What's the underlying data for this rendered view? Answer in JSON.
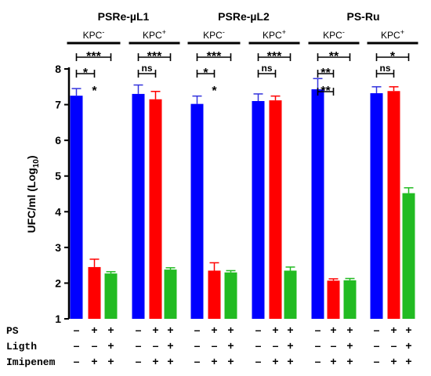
{
  "chart_data": {
    "type": "bar",
    "ylabel": "UFC/ml (Log10)",
    "ylabel_main": "UFC/ml (Log",
    "ylabel_sub": "10",
    "ylabel_end": ")",
    "ylim": [
      1,
      8
    ],
    "yticks": [
      "1",
      "2",
      "3",
      "4",
      "5",
      "6",
      "7",
      "8"
    ],
    "colors": {
      "blue": "#0000ff",
      "red": "#ff0000",
      "green": "#22bb22",
      "errorbar_blue": "#3333dd"
    },
    "groups": [
      {
        "title": "PSRe-µL1",
        "subgroups": [
          {
            "label": "KPC",
            "sup": "-",
            "bars": [
              {
                "color": "blue",
                "value": 7.25,
                "err": 0.2
              },
              {
                "color": "red",
                "value": 2.45,
                "err": 0.22
              },
              {
                "color": "green",
                "value": 2.27,
                "err": 0.05
              }
            ],
            "sig": [
              {
                "text": "*",
                "from": 0,
                "to": 1,
                "level": 1
              },
              {
                "text": "***",
                "from": 0,
                "to": 2,
                "level": 0
              },
              {
                "text": "*",
                "from": 1,
                "to": 1,
                "level": 2,
                "free": true
              }
            ]
          },
          {
            "label": "KPC",
            "sup": "+",
            "bars": [
              {
                "color": "blue",
                "value": 7.3,
                "err": 0.25
              },
              {
                "color": "red",
                "value": 7.15,
                "err": 0.22
              },
              {
                "color": "green",
                "value": 2.38,
                "err": 0.05
              }
            ],
            "sig": [
              {
                "text": "ns",
                "from": 0,
                "to": 1,
                "level": 1
              },
              {
                "text": "***",
                "from": 0,
                "to": 2,
                "level": 0
              }
            ]
          }
        ]
      },
      {
        "title": "PSRe-µL2",
        "subgroups": [
          {
            "label": "KPC",
            "sup": "-",
            "bars": [
              {
                "color": "blue",
                "value": 7.02,
                "err": 0.22
              },
              {
                "color": "red",
                "value": 2.35,
                "err": 0.22
              },
              {
                "color": "green",
                "value": 2.3,
                "err": 0.05
              }
            ],
            "sig": [
              {
                "text": "*",
                "from": 0,
                "to": 1,
                "level": 1
              },
              {
                "text": "***",
                "from": 0,
                "to": 2,
                "level": 0
              },
              {
                "text": "*",
                "from": 1,
                "to": 1,
                "level": 2,
                "free": true
              }
            ]
          },
          {
            "label": "KPC",
            "sup": "+",
            "bars": [
              {
                "color": "blue",
                "value": 7.1,
                "err": 0.2
              },
              {
                "color": "red",
                "value": 7.12,
                "err": 0.12
              },
              {
                "color": "green",
                "value": 2.35,
                "err": 0.1
              }
            ],
            "sig": [
              {
                "text": "ns",
                "from": 0,
                "to": 1,
                "level": 1
              },
              {
                "text": "***",
                "from": 0,
                "to": 2,
                "level": 0
              }
            ]
          }
        ]
      },
      {
        "title": "PS-Ru",
        "subgroups": [
          {
            "label": "KPC",
            "sup": "-",
            "bars": [
              {
                "color": "blue",
                "value": 7.43,
                "err": 0.3
              },
              {
                "color": "red",
                "value": 2.07,
                "err": 0.05
              },
              {
                "color": "green",
                "value": 2.08,
                "err": 0.05
              }
            ],
            "sig": [
              {
                "text": "**",
                "from": 0,
                "to": 1,
                "level": 1
              },
              {
                "text": "**",
                "from": 0,
                "to": 2,
                "level": 0
              },
              {
                "text": "**",
                "from": 0,
                "to": 1,
                "level": 2
              }
            ]
          },
          {
            "label": "KPC",
            "sup": "+",
            "bars": [
              {
                "color": "blue",
                "value": 7.32,
                "err": 0.18
              },
              {
                "color": "red",
                "value": 7.38,
                "err": 0.12
              },
              {
                "color": "green",
                "value": 4.52,
                "err": 0.15
              }
            ],
            "sig": [
              {
                "text": "ns",
                "from": 0,
                "to": 1,
                "level": 1
              },
              {
                "text": "*",
                "from": 0,
                "to": 2,
                "level": 0
              }
            ]
          }
        ]
      }
    ],
    "conditions": [
      {
        "label": "PS",
        "pattern": [
          "–",
          "+",
          "+"
        ]
      },
      {
        "label": "Ligth",
        "pattern": [
          "–",
          "–",
          "+"
        ]
      },
      {
        "label": "Imipenem",
        "pattern": [
          "–",
          "+",
          "+"
        ]
      }
    ]
  }
}
